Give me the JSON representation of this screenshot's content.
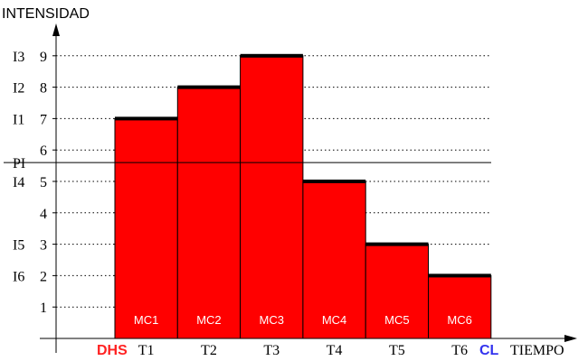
{
  "chart_data": {
    "type": "bar",
    "ylabel": "INTENSIDAD",
    "xlabel": "TIEMPO",
    "ylim": [
      0,
      10
    ],
    "yticks": [
      "1",
      "2",
      "3",
      "4",
      "5",
      "6",
      "7",
      "8",
      "9"
    ],
    "categories": [
      "T1",
      "T2",
      "T3",
      "T4",
      "T5",
      "T6"
    ],
    "values": [
      7,
      8,
      9,
      5,
      3,
      2
    ],
    "bar_labels": [
      "MC1",
      "MC2",
      "MC3",
      "MC4",
      "MC5",
      "MC6"
    ],
    "bar_color": "#ff0000",
    "bar_cap_color": "#000000",
    "intensity_labels": [
      {
        "label": "I3",
        "value": 9
      },
      {
        "label": "I2",
        "value": 8
      },
      {
        "label": "I1",
        "value": 7
      },
      {
        "label": "I4",
        "value": 5
      },
      {
        "label": "I5",
        "value": 3
      },
      {
        "label": "I6",
        "value": 2
      }
    ],
    "reference_line": {
      "label": "PI",
      "value": 5.6
    },
    "start_marker": {
      "label": "DHS",
      "color": "#ff2222"
    },
    "end_marker": {
      "label": "CL",
      "color": "#3333ee"
    }
  }
}
